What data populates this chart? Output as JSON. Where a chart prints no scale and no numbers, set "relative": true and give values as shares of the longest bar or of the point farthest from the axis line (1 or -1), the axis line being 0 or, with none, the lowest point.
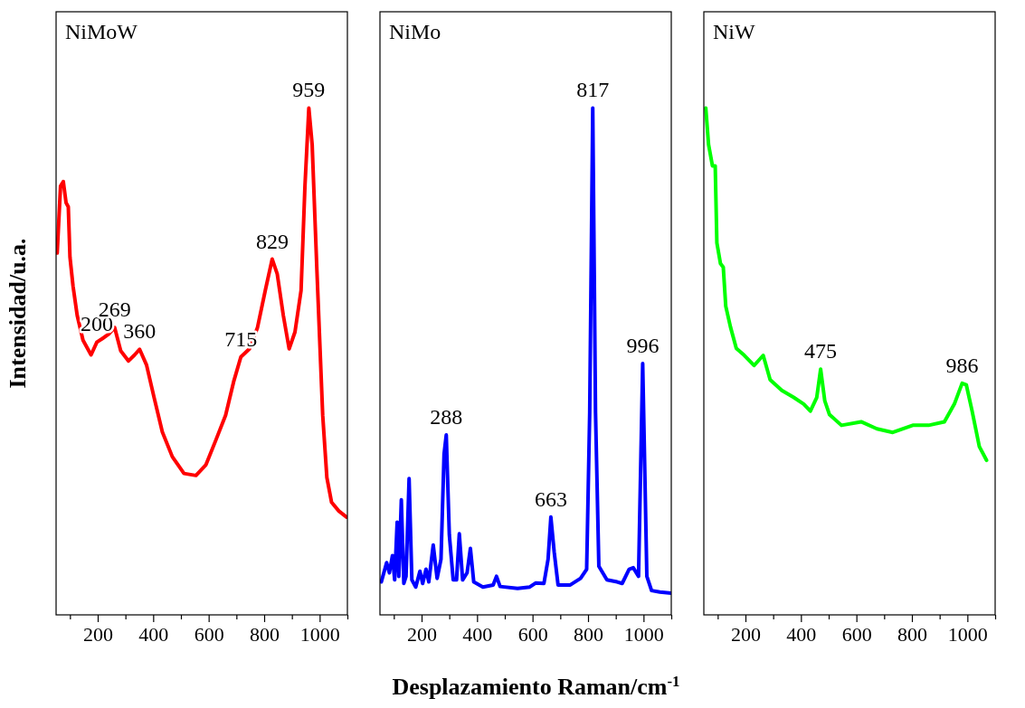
{
  "chart_data": [
    {
      "type": "line",
      "title": "NiMoW",
      "ylabel": "Intensidad/u.a.",
      "relative": true,
      "xlim": [
        50,
        1100
      ],
      "xticks": [
        {
          "value": 100,
          "label": null
        },
        200,
        {
          "value": 300,
          "label": null
        },
        400,
        {
          "value": 500,
          "label": null
        },
        600,
        {
          "value": 700,
          "label": null
        },
        800,
        {
          "value": 900,
          "label": null
        },
        1000,
        {
          "value": 1100,
          "label": null
        }
      ],
      "annotations": [
        {
          "text": "200",
          "x": 197,
          "y": 0.538
        },
        {
          "text": "269",
          "x": 261,
          "y": 0.567
        },
        {
          "text": "360",
          "x": 351,
          "y": 0.524
        },
        {
          "text": "715",
          "x": 716,
          "y": 0.509
        },
        {
          "text": "829",
          "x": 829,
          "y": 0.702
        },
        {
          "text": "959",
          "x": 961,
          "y": 1
        }
      ],
      "x": [
        54,
        66,
        76,
        86,
        94,
        100,
        111,
        126,
        147,
        176,
        197,
        219,
        240,
        261,
        283,
        311,
        333,
        351,
        376,
        404,
        433,
        469,
        511,
        554,
        590,
        626,
        661,
        690,
        716,
        747,
        776,
        804,
        829,
        847,
        869,
        890,
        911,
        933,
        947,
        961,
        973,
        990,
        1011,
        1026,
        1043,
        1069,
        1097
      ],
      "series": [
        {
          "color": "#ff0000",
          "values": [
            0.714,
            0.846,
            0.855,
            0.813,
            0.805,
            0.706,
            0.649,
            0.591,
            0.542,
            0.513,
            0.538,
            0.546,
            0.554,
            0.567,
            0.521,
            0.501,
            0.513,
            0.524,
            0.493,
            0.427,
            0.361,
            0.312,
            0.279,
            0.275,
            0.296,
            0.345,
            0.394,
            0.46,
            0.509,
            0.525,
            0.567,
            0.64,
            0.702,
            0.673,
            0.591,
            0.525,
            0.558,
            0.64,
            0.846,
            1,
            0.928,
            0.681,
            0.394,
            0.271,
            0.222,
            0.205,
            0.193
          ]
        }
      ]
    },
    {
      "type": "line",
      "title": "NiMo",
      "xlabel": "Desplazamiento Raman/cm$^{-1}$",
      "relative": true,
      "xlim": [
        50,
        1100
      ],
      "xticks": [
        {
          "value": 100,
          "label": null
        },
        200,
        {
          "value": 300,
          "label": null
        },
        400,
        {
          "value": 500,
          "label": null
        },
        600,
        {
          "value": 700,
          "label": null
        },
        800,
        {
          "value": 900,
          "label": null
        },
        1000,
        {
          "value": 1100,
          "label": null
        }
      ],
      "annotations": [
        {
          "text": "288",
          "x": 289,
          "y": 0.355
        },
        {
          "text": "663",
          "x": 666,
          "y": 0.193
        },
        {
          "text": "817",
          "x": 817,
          "y": 1
        },
        {
          "text": "996",
          "x": 997,
          "y": 0.496
        }
      ],
      "x": [
        55,
        74,
        84,
        95,
        103,
        112,
        118,
        127,
        136,
        144,
        155,
        165,
        179,
        194,
        204,
        216,
        226,
        242,
        256,
        270,
        281,
        289,
        300,
        314,
        326,
        336,
        348,
        364,
        376,
        388,
        421,
        458,
        470,
        483,
        546,
        590,
        612,
        641,
        656,
        666,
        678,
        692,
        736,
        773,
        795,
        806,
        817,
        827,
        839,
        868,
        905,
        923,
        948,
        963,
        982,
        997,
        1012,
        1029,
        1059,
        1100
      ],
      "series": [
        {
          "color": "#0000ff",
          "values": [
            0.065,
            0.103,
            0.083,
            0.117,
            0.069,
            0.183,
            0.076,
            0.227,
            0.062,
            0.076,
            0.269,
            0.069,
            0.055,
            0.086,
            0.062,
            0.09,
            0.065,
            0.138,
            0.072,
            0.11,
            0.317,
            0.355,
            0.158,
            0.069,
            0.069,
            0.16,
            0.069,
            0.083,
            0.131,
            0.065,
            0.055,
            0.059,
            0.076,
            0.056,
            0.052,
            0.055,
            0.063,
            0.062,
            0.11,
            0.193,
            0.124,
            0.059,
            0.059,
            0.072,
            0.09,
            0.399,
            1,
            0.399,
            0.096,
            0.069,
            0.065,
            0.062,
            0.09,
            0.093,
            0.076,
            0.496,
            0.076,
            0.048,
            0.045,
            0.043
          ]
        }
      ]
    },
    {
      "type": "line",
      "title": "NiW",
      "relative": true,
      "xlim": [
        50,
        1100
      ],
      "xticks": [
        {
          "value": 100,
          "label": null
        },
        200,
        {
          "value": 300,
          "label": null
        },
        400,
        {
          "value": 500,
          "label": null
        },
        600,
        {
          "value": 700,
          "label": null
        },
        800,
        {
          "value": 900,
          "label": null
        },
        1000,
        {
          "value": 1100,
          "label": null
        }
      ],
      "annotations": [
        {
          "text": "475",
          "x": 471,
          "y": 0.485
        },
        {
          "text": "986",
          "x": 981,
          "y": 0.457
        }
      ],
      "x": [
        57,
        67,
        81,
        91,
        97,
        110,
        120,
        129,
        146,
        167,
        196,
        231,
        264,
        289,
        331,
        374,
        410,
        434,
        457,
        471,
        486,
        503,
        546,
        617,
        674,
        731,
        803,
        860,
        917,
        953,
        981,
        996,
        1017,
        1043,
        1069
      ],
      "series": [
        {
          "color": "#00ff00",
          "values": [
            1,
            0.928,
            0.886,
            0.886,
            0.734,
            0.693,
            0.686,
            0.609,
            0.568,
            0.526,
            0.512,
            0.492,
            0.512,
            0.464,
            0.443,
            0.429,
            0.416,
            0.402,
            0.429,
            0.485,
            0.422,
            0.395,
            0.374,
            0.381,
            0.367,
            0.36,
            0.374,
            0.374,
            0.381,
            0.416,
            0.457,
            0.454,
            0.402,
            0.332,
            0.305
          ]
        }
      ]
    }
  ]
}
